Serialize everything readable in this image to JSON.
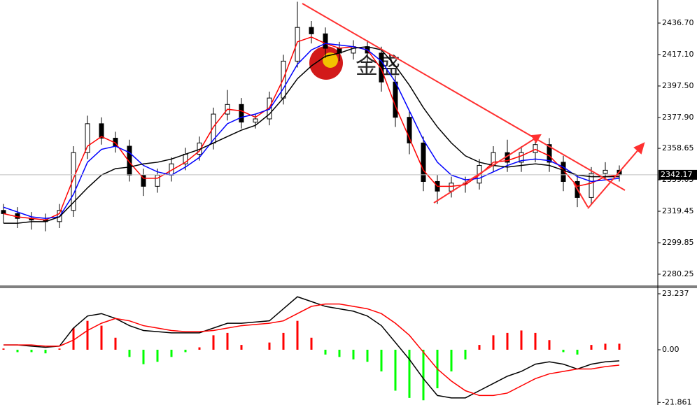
{
  "chart_data": [
    {
      "type": "candlestick",
      "watermark": "金盛",
      "categories": [
        null,
        null,
        null,
        null,
        null,
        null,
        null,
        null,
        null,
        null,
        null,
        null,
        null,
        null,
        null,
        null,
        null,
        null,
        null,
        null,
        null,
        null,
        null,
        null,
        null,
        null,
        null,
        null,
        null,
        null,
        null,
        null,
        null,
        null,
        null,
        null,
        null,
        null,
        null,
        null,
        null,
        null,
        null,
        null,
        null
      ],
      "open": [
        2320,
        2318,
        2315,
        2314,
        2313,
        2320,
        2356,
        2374,
        2365,
        2360,
        2342,
        2335,
        2342,
        2349,
        2355,
        2362,
        2380,
        2386,
        2375,
        2377,
        2390,
        2413,
        2434,
        2430,
        2421,
        2418,
        2422,
        2418,
        2400,
        2378,
        2362,
        2338,
        2332,
        2337,
        2337,
        2348,
        2356,
        2350,
        2356,
        2361,
        2350,
        2338,
        2328,
        2343,
        2345
      ],
      "high": [
        2324,
        2322,
        2319,
        2318,
        2324,
        2360,
        2379,
        2378,
        2369,
        2364,
        2346,
        2346,
        2353,
        2359,
        2366,
        2384,
        2395,
        2390,
        2380,
        2394,
        2417,
        2450,
        2438,
        2434,
        2425,
        2426,
        2426,
        2422,
        2404,
        2382,
        2366,
        2342,
        2341,
        2341,
        2352,
        2360,
        2364,
        2360,
        2366,
        2365,
        2354,
        2342,
        2347,
        2350,
        2348
      ],
      "low": [
        2312,
        2309,
        2308,
        2307,
        2309,
        2316,
        2352,
        2361,
        2356,
        2338,
        2329,
        2331,
        2338,
        2345,
        2351,
        2358,
        2376,
        2371,
        2371,
        2373,
        2386,
        2409,
        2424,
        2415,
        2413,
        2414,
        2412,
        2394,
        2372,
        2355,
        2332,
        2324,
        2328,
        2331,
        2333,
        2344,
        2344,
        2344,
        2350,
        2344,
        2332,
        2322,
        2324,
        2339,
        2338
      ],
      "close": [
        2318,
        2315,
        2314,
        2313,
        2320,
        2356,
        2374,
        2365,
        2360,
        2342,
        2335,
        2342,
        2349,
        2355,
        2362,
        2380,
        2386,
        2375,
        2377,
        2390,
        2413,
        2434,
        2430,
        2421,
        2418,
        2422,
        2418,
        2400,
        2378,
        2362,
        2338,
        2332,
        2337,
        2337,
        2348,
        2356,
        2350,
        2356,
        2361,
        2350,
        2338,
        2328,
        2343,
        2345,
        2342.17
      ],
      "series": [
        {
          "color": "#ff0000",
          "values": [
            2318,
            2316,
            2315,
            2314,
            2318,
            2340,
            2360,
            2366,
            2362,
            2350,
            2340,
            2340,
            2345,
            2350,
            2357,
            2372,
            2383,
            2382,
            2378,
            2384,
            2402,
            2425,
            2428,
            2424,
            2421,
            2422,
            2420,
            2408,
            2385,
            2365,
            2345,
            2335,
            2335,
            2336,
            2342,
            2350,
            2351,
            2354,
            2358,
            2354,
            2345,
            2335,
            2337,
            2341,
            2342
          ]
        },
        {
          "color": "#0000ff",
          "values": [
            2322,
            2319,
            2316,
            2315,
            2316,
            2330,
            2350,
            2358,
            2360,
            2356,
            2348,
            2344,
            2342,
            2347,
            2353,
            2364,
            2374,
            2378,
            2380,
            2383,
            2396,
            2411,
            2420,
            2424,
            2423,
            2422,
            2420,
            2413,
            2400,
            2382,
            2364,
            2350,
            2342,
            2339,
            2340,
            2344,
            2348,
            2351,
            2352,
            2351,
            2347,
            2341,
            2338,
            2339,
            2340
          ]
        },
        {
          "color": "#000000",
          "values": [
            2312,
            2312,
            2313,
            2313,
            2316,
            2325,
            2334,
            2342,
            2346,
            2347,
            2349,
            2350,
            2352,
            2355,
            2358,
            2362,
            2366,
            2370,
            2373,
            2380,
            2390,
            2402,
            2410,
            2416,
            2418,
            2421,
            2422,
            2420,
            2410,
            2398,
            2384,
            2372,
            2362,
            2354,
            2350,
            2348,
            2347,
            2348,
            2349,
            2348,
            2345,
            2342,
            2341,
            2341,
            2341
          ]
        }
      ],
      "last_price": 2342.17,
      "ylim": [
        2273.27,
        2451.08
      ],
      "yticks": [
        {
          "value": 2436.7,
          "label": "2436.70"
        },
        {
          "value": 2417.1,
          "label": "2417.10"
        },
        {
          "value": 2397.5,
          "label": "2397.50"
        },
        {
          "value": 2377.9,
          "label": "2377.90"
        },
        2358.65,
        2339.05,
        2319.45,
        2299.85,
        2280.25
      ]
    },
    {
      "type": "macd",
      "up_color": "#ff0000",
      "down_color": "#00ff00",
      "values": [
        0.5,
        -1,
        -1,
        -1.5,
        0.5,
        9,
        12,
        10,
        5,
        -3,
        -6,
        -5,
        -3,
        -1,
        1,
        6,
        7,
        2,
        0,
        3,
        7,
        12,
        5,
        -2,
        -3,
        -4,
        -5,
        -9,
        -17,
        -20,
        -21,
        -16,
        -9,
        -4,
        2,
        6,
        7,
        8,
        7,
        4,
        -1,
        -2,
        2,
        2.5,
        2.5
      ],
      "series": [
        {
          "color": "#000000",
          "values": [
            2,
            2,
            1.5,
            1,
            1.5,
            9,
            14,
            15,
            13,
            10,
            8,
            7.5,
            7,
            7,
            7,
            9,
            11,
            11,
            11.5,
            12,
            17,
            22,
            20,
            18,
            17,
            16,
            14,
            10,
            3,
            -4,
            -12,
            -19,
            -20,
            -20,
            -17,
            -14,
            -11,
            -9,
            -6,
            -5,
            -6,
            -8,
            -6,
            -5,
            -4.6
          ]
        },
        {
          "color": "#ff0000",
          "values": [
            2,
            2,
            2,
            1.5,
            1.5,
            4,
            8,
            11,
            13,
            12,
            10,
            9,
            8,
            7.5,
            7.5,
            8,
            9,
            10,
            10.5,
            11,
            12,
            15,
            18,
            19,
            19,
            18,
            17,
            15,
            11,
            6,
            -1,
            -8,
            -13,
            -17,
            -19,
            -19,
            -18,
            -15,
            -12,
            -10,
            -9,
            -8,
            -8,
            -7,
            -6.4
          ]
        }
      ],
      "ylim": [
        -22.95,
        25.85
      ],
      "yticks": [
        23.237,
        {
          "value": 0,
          "label": "0.00"
        },
        -21.861
      ]
    }
  ]
}
